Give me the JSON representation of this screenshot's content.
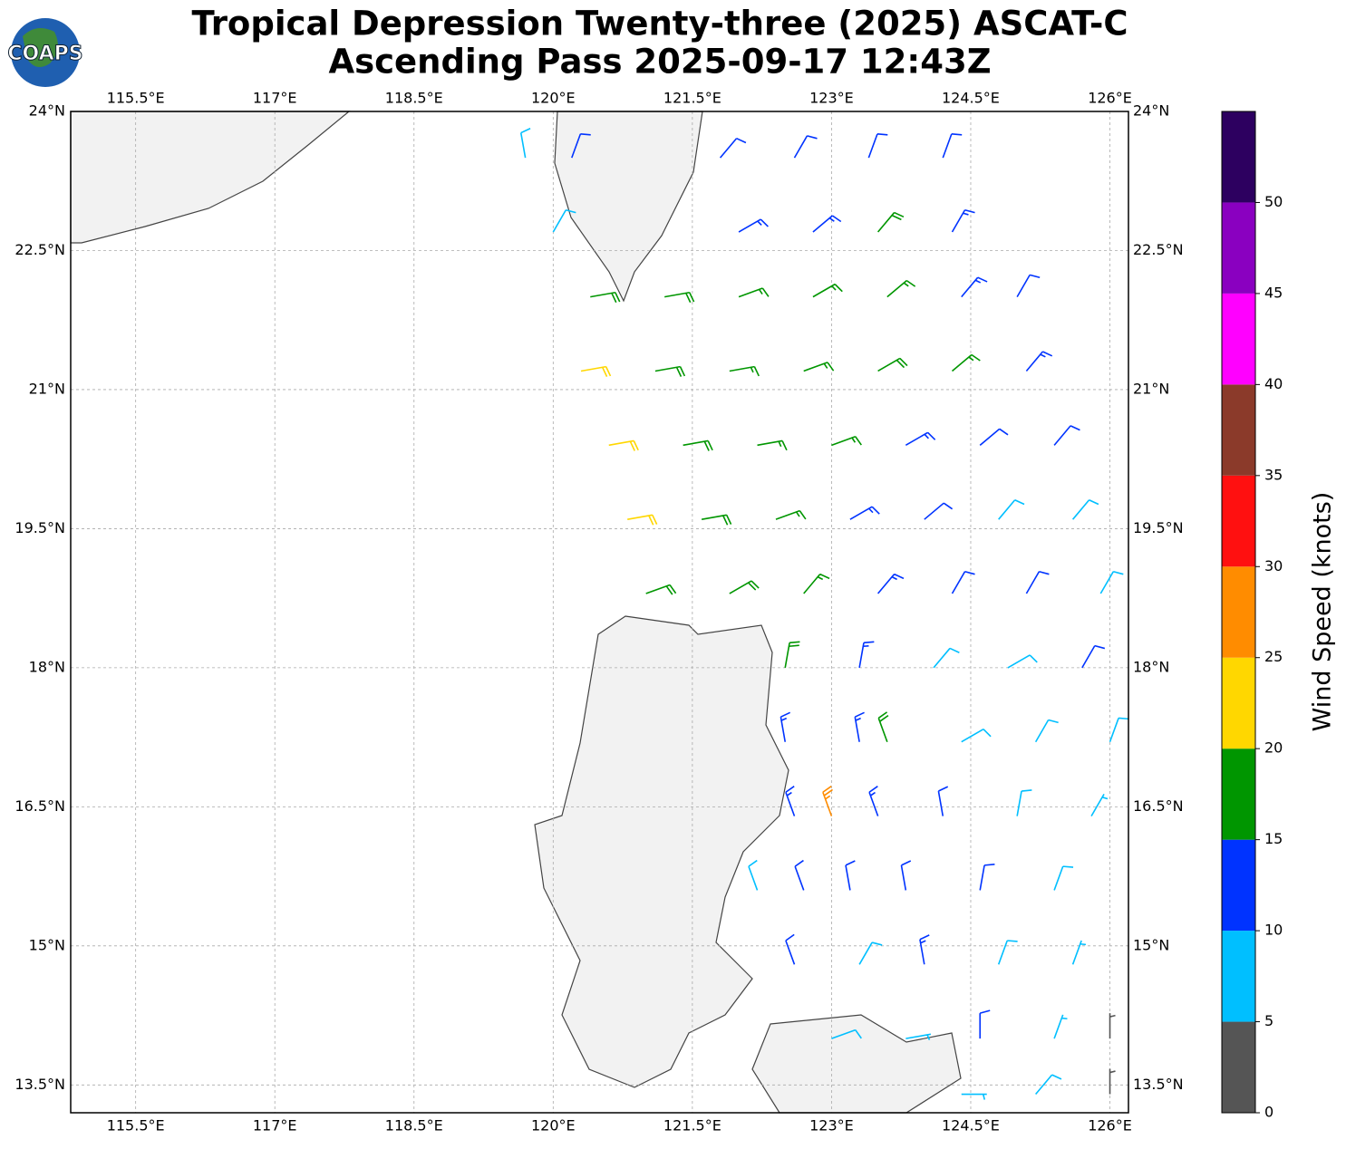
{
  "logo": "COAPS",
  "chart_data": {
    "type": "wind-barbs",
    "title": "Tropical Depression Twenty-three (2025) ASCAT-C",
    "subtitle": "Ascending Pass 2025-09-17 12:43Z",
    "xlim": [
      114.8,
      126.2
    ],
    "ylim": [
      13.2,
      24
    ],
    "xticks": [
      {
        "value": 115.5,
        "label": "115.5°E"
      },
      {
        "value": 117,
        "label": "117°E"
      },
      {
        "value": 118.5,
        "label": "118.5°E"
      },
      {
        "value": 120,
        "label": "120°E"
      },
      {
        "value": 121.5,
        "label": "121.5°E"
      },
      {
        "value": 123,
        "label": "123°E"
      },
      {
        "value": 124.5,
        "label": "124.5°E"
      },
      {
        "value": 126,
        "label": "126°E"
      }
    ],
    "yticks": [
      {
        "value": 13.5,
        "label": "13.5°N"
      },
      {
        "value": 15,
        "label": "15°N"
      },
      {
        "value": 16.5,
        "label": "16.5°N"
      },
      {
        "value": 18,
        "label": "18°N"
      },
      {
        "value": 19.5,
        "label": "19.5°N"
      },
      {
        "value": 21,
        "label": "21°N"
      },
      {
        "value": 22.5,
        "label": "22.5°N"
      },
      {
        "value": 24,
        "label": "24°N"
      }
    ],
    "grid": true,
    "colorbar": {
      "label": "Wind Speed (knots)",
      "lim": [
        0,
        55
      ],
      "bounds": [
        0,
        5,
        10,
        15,
        20,
        25,
        30,
        35,
        40,
        45,
        50,
        55
      ],
      "colors": [
        "#555555",
        "#00bfff",
        "#0033ff",
        "#009600",
        "#ffd700",
        "#ff8c00",
        "#ff1010",
        "#8b3a2a",
        "#ff00ff",
        "#8a00c0",
        "#2d0060"
      ],
      "ticks": [
        0,
        5,
        10,
        15,
        20,
        25,
        30,
        35,
        40,
        45,
        50
      ]
    },
    "barbs": {
      "lon": [
        119.7,
        120.2,
        121.8,
        122.6,
        123.4,
        124.2,
        120.0,
        122.0,
        122.8,
        123.5,
        124.3,
        120.4,
        121.2,
        122.0,
        122.8,
        123.6,
        124.4,
        125.0,
        120.3,
        121.1,
        121.9,
        122.7,
        123.5,
        124.3,
        125.1,
        120.6,
        121.4,
        122.2,
        123.0,
        123.8,
        124.6,
        125.4,
        120.8,
        121.6,
        122.4,
        123.2,
        124.0,
        124.8,
        125.6,
        121.0,
        121.9,
        122.7,
        123.5,
        124.3,
        125.1,
        125.9,
        122.5,
        123.3,
        124.1,
        124.9,
        125.7,
        122.5,
        123.3,
        123.6,
        124.4,
        125.2,
        126.0,
        122.6,
        123.0,
        123.5,
        124.2,
        125.0,
        125.8,
        122.2,
        122.7,
        123.2,
        123.8,
        124.6,
        125.4,
        122.6,
        123.3,
        124.0,
        124.8,
        125.6,
        123.0,
        123.8,
        124.6,
        125.4,
        126.0,
        124.4,
        125.2,
        126.0
      ],
      "lat": [
        23.5,
        23.5,
        23.5,
        23.5,
        23.5,
        23.5,
        22.7,
        22.7,
        22.7,
        22.7,
        22.7,
        22.0,
        22.0,
        22.0,
        22.0,
        22.0,
        22.0,
        22.0,
        21.2,
        21.2,
        21.2,
        21.2,
        21.2,
        21.2,
        21.2,
        20.4,
        20.4,
        20.4,
        20.4,
        20.4,
        20.4,
        20.4,
        19.6,
        19.6,
        19.6,
        19.6,
        19.6,
        19.6,
        19.6,
        18.8,
        18.8,
        18.8,
        18.8,
        18.8,
        18.8,
        18.8,
        18.0,
        18.0,
        18.0,
        18.0,
        18.0,
        17.2,
        17.2,
        17.2,
        17.2,
        17.2,
        17.2,
        16.4,
        16.4,
        16.4,
        16.4,
        16.4,
        16.4,
        15.6,
        15.6,
        15.6,
        15.6,
        15.6,
        15.6,
        14.8,
        14.8,
        14.8,
        14.8,
        14.8,
        14.0,
        14.0,
        14.0,
        14.0,
        14.0,
        13.4,
        13.4,
        13.4
      ],
      "speed": [
        8,
        12,
        11,
        12,
        12,
        11,
        9,
        13,
        14,
        18,
        13,
        18,
        18,
        17,
        16,
        17,
        13,
        12,
        22,
        18,
        17,
        17,
        18,
        17,
        13,
        22,
        18,
        17,
        16,
        13,
        12,
        12,
        21,
        18,
        17,
        13,
        12,
        9,
        9,
        18,
        18,
        16,
        13,
        12,
        10,
        8,
        18,
        14,
        8,
        9,
        12,
        14,
        13,
        18,
        8,
        8,
        9,
        13,
        26,
        13,
        12,
        8,
        6,
        9,
        12,
        12,
        11,
        12,
        8,
        12,
        9,
        13,
        9,
        7,
        8,
        7,
        12,
        7,
        3,
        7,
        8,
        3
      ],
      "direction": [
        350,
        20,
        40,
        30,
        20,
        20,
        30,
        60,
        50,
        40,
        30,
        80,
        80,
        70,
        60,
        50,
        40,
        30,
        80,
        80,
        80,
        70,
        60,
        50,
        40,
        80,
        80,
        80,
        70,
        60,
        50,
        40,
        80,
        80,
        70,
        60,
        50,
        40,
        40,
        70,
        60,
        40,
        40,
        30,
        30,
        30,
        10,
        10,
        40,
        60,
        30,
        350,
        350,
        340,
        60,
        30,
        20,
        340,
        340,
        340,
        350,
        10,
        30,
        340,
        340,
        350,
        350,
        10,
        20,
        340,
        30,
        350,
        20,
        20,
        70,
        80,
        0,
        20,
        0,
        90,
        40,
        0
      ]
    }
  }
}
